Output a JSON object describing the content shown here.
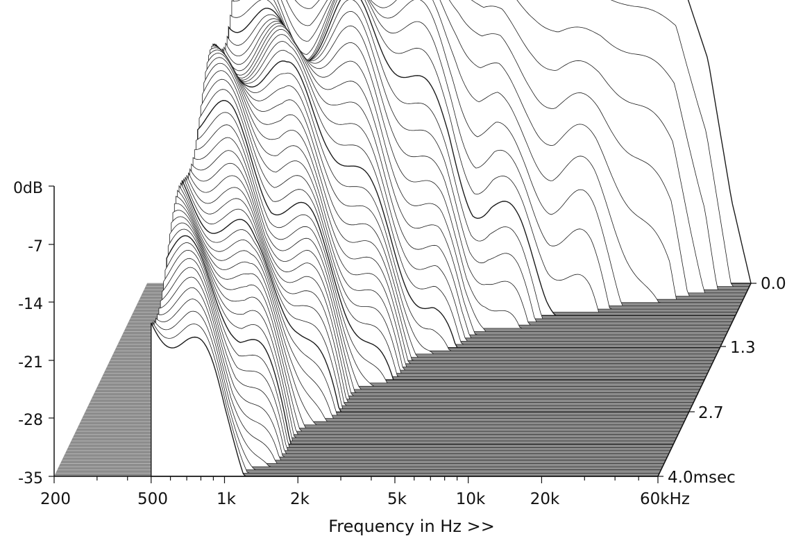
{
  "chart_data": {
    "type": "waterfall-3d",
    "title": "",
    "xlabel": "Frequency in Hz >>",
    "x_scale": "log",
    "x_range_hz": [
      200,
      60000
    ],
    "x_ticks": [
      {
        "label": "200",
        "hz": 200
      },
      {
        "label": "500",
        "hz": 500
      },
      {
        "label": "1k",
        "hz": 1000
      },
      {
        "label": "2k",
        "hz": 2000
      },
      {
        "label": "5k",
        "hz": 5000
      },
      {
        "label": "10k",
        "hz": 10000
      },
      {
        "label": "20k",
        "hz": 20000
      },
      {
        "label": "60kHz",
        "hz": 60000
      }
    ],
    "y_range_db": [
      -35,
      0
    ],
    "y_ticks": [
      {
        "label": "0dB",
        "db": 0
      },
      {
        "label": "-7",
        "db": -7
      },
      {
        "label": "-14",
        "db": -14
      },
      {
        "label": "-21",
        "db": -21
      },
      {
        "label": "-28",
        "db": -28
      },
      {
        "label": "-35",
        "db": -35
      }
    ],
    "time_range_ms": [
      0,
      4.0
    ],
    "time_ticks": [
      {
        "label": "0.0",
        "ms": 0.0
      },
      {
        "label": "1.3",
        "ms": 1.3
      },
      {
        "label": "2.7",
        "ms": 2.7
      },
      {
        "label": "4.0msec",
        "ms": 4.0
      }
    ],
    "slice_count": 60,
    "initial_response_db": [
      {
        "hz": 500,
        "db": 8
      },
      {
        "hz": 700,
        "db": 7
      },
      {
        "hz": 1000,
        "db": 5
      },
      {
        "hz": 1500,
        "db": 6.5
      },
      {
        "hz": 2000,
        "db": 6.5
      },
      {
        "hz": 3000,
        "db": 7
      },
      {
        "hz": 4000,
        "db": 7.5
      },
      {
        "hz": 5000,
        "db": 6
      },
      {
        "hz": 6000,
        "db": 7
      },
      {
        "hz": 8000,
        "db": 6
      },
      {
        "hz": 10000,
        "db": 4.5
      },
      {
        "hz": 15000,
        "db": 5
      },
      {
        "hz": 20000,
        "db": 4
      },
      {
        "hz": 30000,
        "db": 3
      },
      {
        "hz": 40000,
        "db": -8
      },
      {
        "hz": 50000,
        "db": -25
      },
      {
        "hz": 60000,
        "db": -35
      }
    ],
    "colors": {
      "floor": "#8c8c8c",
      "floor_lines": "#b4b4b4",
      "slice_line": "#1a1a1a",
      "slice_fill": "#ffffff",
      "axis": "#111111"
    }
  }
}
